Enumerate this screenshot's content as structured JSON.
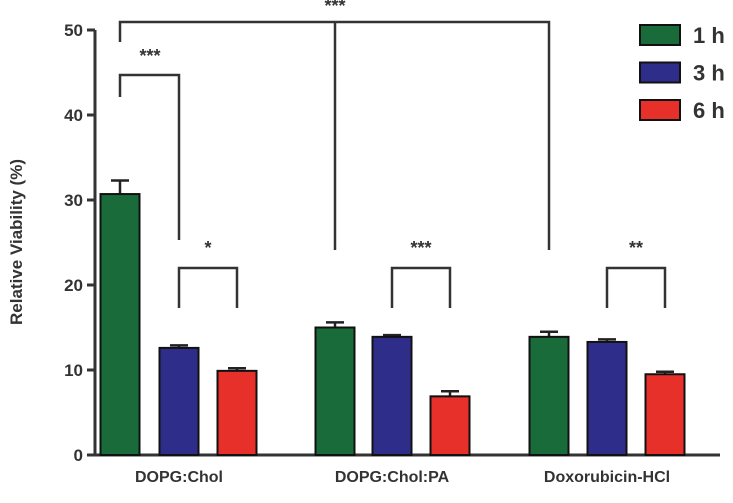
{
  "chart_data": {
    "type": "bar",
    "y_label": "Relative Viability (%)",
    "categories": [
      "DOPG:Chol",
      "DOPG:Chol:PA",
      "Doxorubicin-HCl"
    ],
    "series": [
      {
        "name": "1 h",
        "color": "#1a6b3a",
        "values": [
          30.7,
          15.0,
          13.9
        ],
        "errors": [
          1.6,
          0.6,
          0.6
        ]
      },
      {
        "name": "3 h",
        "color": "#2e2d8a",
        "values": [
          12.6,
          13.9,
          13.3
        ],
        "errors": [
          0.3,
          0.2,
          0.3
        ]
      },
      {
        "name": "6 h",
        "color": "#e8302a",
        "values": [
          9.9,
          6.9,
          9.5
        ],
        "errors": [
          0.3,
          0.6,
          0.3
        ]
      }
    ],
    "ylim": [
      0,
      50
    ],
    "yticks": [
      0,
      10,
      20,
      30,
      40,
      50
    ],
    "annotations": [
      "***",
      "***",
      "*",
      "***",
      "**"
    ]
  }
}
